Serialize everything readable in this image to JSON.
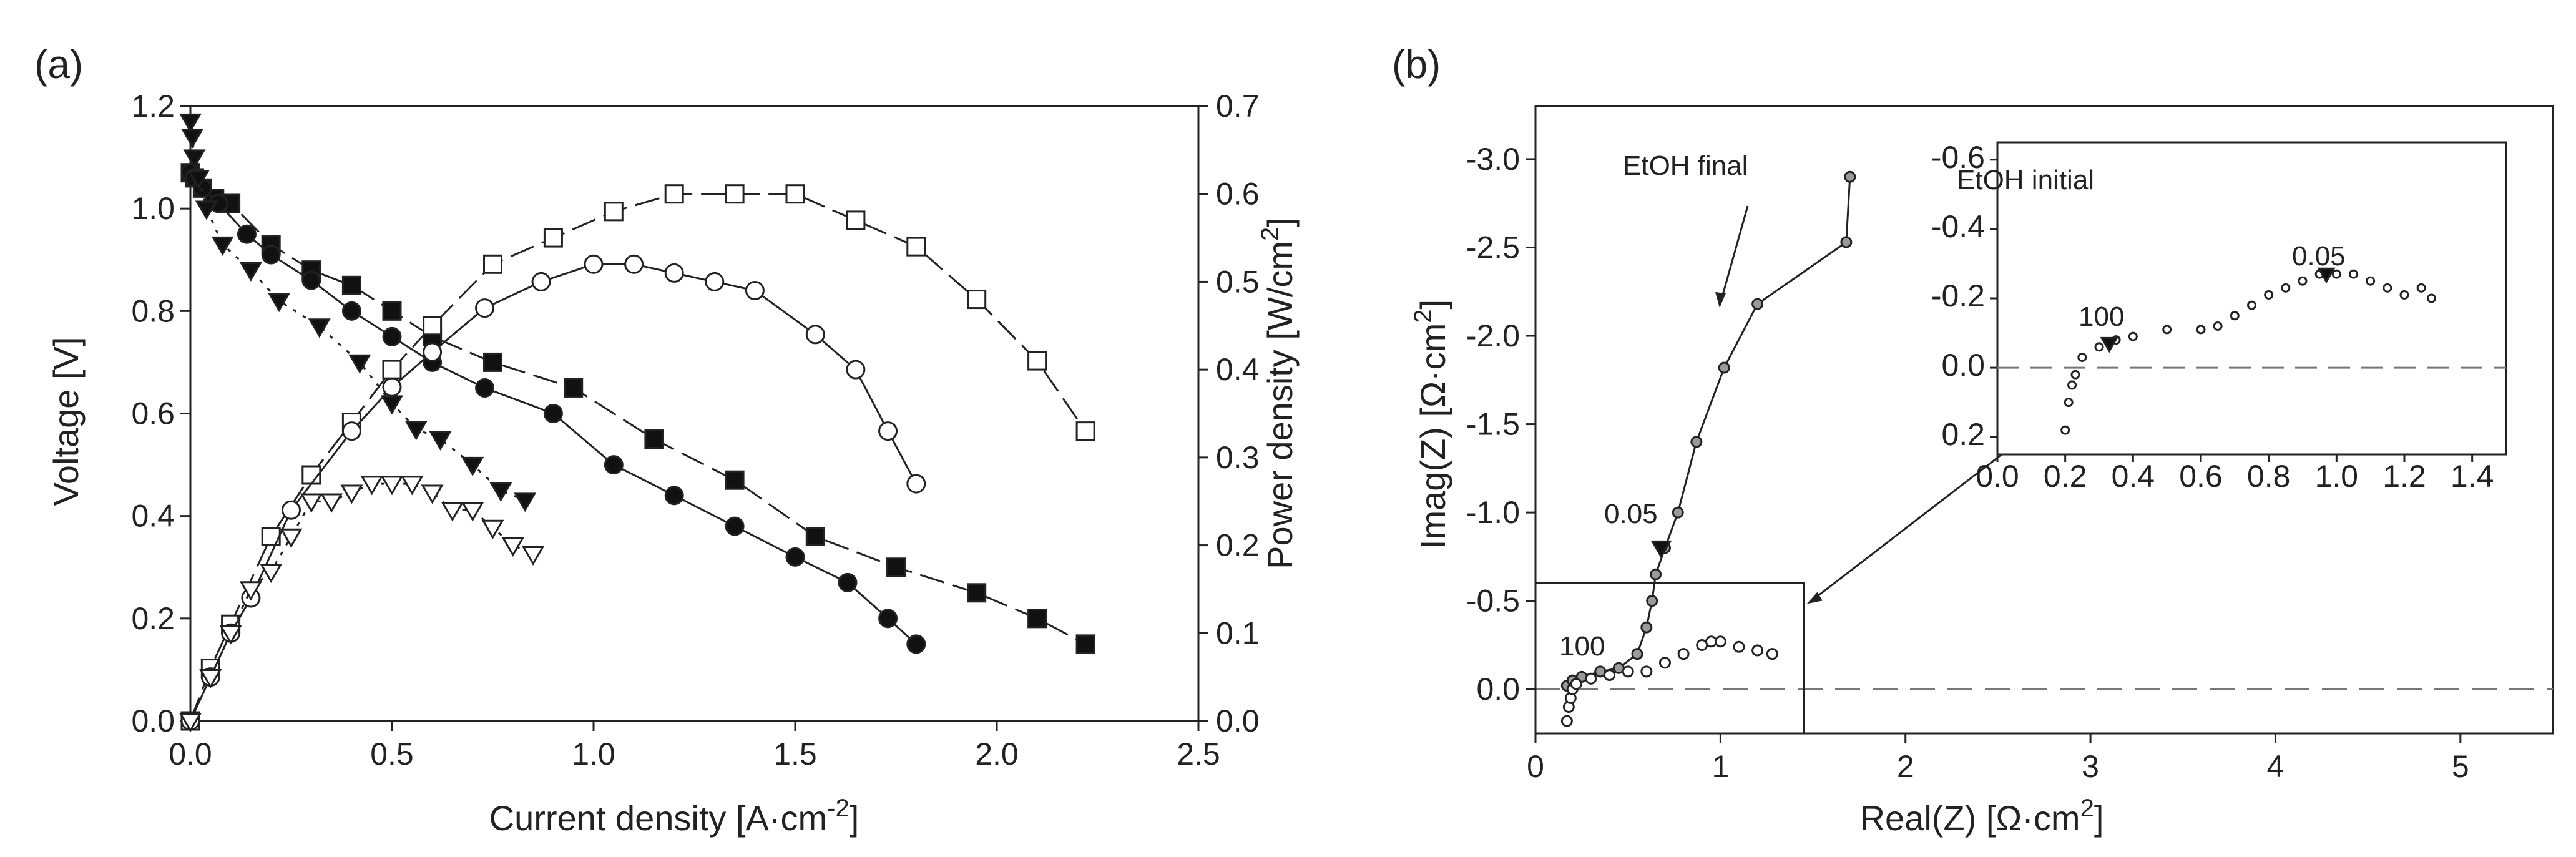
{
  "figure": {
    "colors": {
      "ink": "#222222",
      "marker_fill": "#ffffff",
      "marker_dark": "#111111",
      "impedance_marker": "#9a9a9a",
      "zero_line": "#777777"
    }
  },
  "panel_a": {
    "label": "(a)",
    "xlabel_main": "Current density [A·cm",
    "xlabel_sup": "-2",
    "xlabel_end": "]",
    "ylabel": "Voltage [V]",
    "y2label_main": "Power density [W/cm",
    "y2label_sup": "2",
    "y2label_end": "]"
  },
  "panel_b": {
    "label": "(b)",
    "xlabel_main": "Real(Z) [Ω·cm",
    "xlabel_sup": "2",
    "xlabel_end": "]",
    "ylabel_main": "Imag(Z) [Ω·cm",
    "ylabel_sup": "2",
    "ylabel_end": "]",
    "annotation_final": "EtOH final",
    "annotation_initial": "EtOH initial",
    "freq_low": "0.05",
    "freq_high": "100"
  },
  "chart_data": [
    {
      "type": "line",
      "id": "polarization",
      "xlim": [
        0,
        2.5
      ],
      "ylim": [
        0,
        1.2
      ],
      "y2lim": [
        0,
        0.7
      ],
      "xticks": [
        "0.0",
        "0.5",
        "1.0",
        "1.5",
        "2.0",
        "2.5"
      ],
      "yticks": [
        "0.0",
        "0.2",
        "0.4",
        "0.6",
        "0.8",
        "1.0",
        "1.2"
      ],
      "y2ticks": [
        "0.0",
        "0.1",
        "0.2",
        "0.3",
        "0.4",
        "0.5",
        "0.6",
        "0.7"
      ],
      "series": [
        {
          "name": "voltage-filled-square",
          "axis": "left",
          "marker": "square",
          "filled": true,
          "dash": "long",
          "x": [
            0.0,
            0.01,
            0.03,
            0.06,
            0.1,
            0.2,
            0.3,
            0.4,
            0.5,
            0.6,
            0.75,
            0.95,
            1.15,
            1.35,
            1.55,
            1.75,
            1.95,
            2.1,
            2.22
          ],
          "y": [
            1.07,
            1.06,
            1.04,
            1.02,
            1.01,
            0.93,
            0.88,
            0.85,
            0.8,
            0.75,
            0.7,
            0.65,
            0.55,
            0.47,
            0.36,
            0.3,
            0.25,
            0.2,
            0.15
          ]
        },
        {
          "name": "voltage-filled-circle",
          "axis": "left",
          "marker": "circle",
          "filled": true,
          "dash": "none",
          "x": [
            0.0,
            0.01,
            0.03,
            0.07,
            0.14,
            0.2,
            0.3,
            0.4,
            0.5,
            0.6,
            0.73,
            0.9,
            1.05,
            1.2,
            1.35,
            1.5,
            1.63,
            1.73,
            1.8
          ],
          "y": [
            1.07,
            1.06,
            1.04,
            1.01,
            0.95,
            0.91,
            0.86,
            0.8,
            0.75,
            0.7,
            0.65,
            0.6,
            0.5,
            0.44,
            0.38,
            0.32,
            0.27,
            0.2,
            0.15
          ]
        },
        {
          "name": "voltage-filled-triangle",
          "axis": "left",
          "marker": "triangle-down",
          "filled": true,
          "dash": "dot",
          "x": [
            0.0,
            0.005,
            0.01,
            0.02,
            0.04,
            0.08,
            0.15,
            0.22,
            0.32,
            0.42,
            0.5,
            0.56,
            0.62,
            0.7,
            0.77,
            0.83
          ],
          "y": [
            1.17,
            1.14,
            1.1,
            1.06,
            1.0,
            0.93,
            0.88,
            0.82,
            0.77,
            0.7,
            0.62,
            0.57,
            0.55,
            0.5,
            0.45,
            0.43
          ]
        },
        {
          "name": "power-open-square",
          "axis": "right",
          "marker": "square",
          "filled": false,
          "dash": "long",
          "x": [
            0.0,
            0.05,
            0.1,
            0.2,
            0.3,
            0.4,
            0.5,
            0.6,
            0.75,
            0.9,
            1.05,
            1.2,
            1.35,
            1.5,
            1.65,
            1.8,
            1.95,
            2.1,
            2.22
          ],
          "y": [
            0.0,
            0.06,
            0.11,
            0.21,
            0.28,
            0.34,
            0.4,
            0.45,
            0.52,
            0.55,
            0.58,
            0.6,
            0.6,
            0.6,
            0.57,
            0.54,
            0.48,
            0.41,
            0.33
          ]
        },
        {
          "name": "power-open-circle",
          "axis": "right",
          "marker": "circle",
          "filled": false,
          "dash": "none",
          "x": [
            0.0,
            0.05,
            0.1,
            0.15,
            0.25,
            0.4,
            0.5,
            0.6,
            0.73,
            0.87,
            1.0,
            1.1,
            1.2,
            1.3,
            1.4,
            1.55,
            1.65,
            1.73,
            1.8
          ],
          "y": [
            0.0,
            0.05,
            0.1,
            0.14,
            0.24,
            0.33,
            0.38,
            0.42,
            0.47,
            0.5,
            0.52,
            0.52,
            0.51,
            0.5,
            0.49,
            0.44,
            0.4,
            0.33,
            0.27
          ]
        },
        {
          "name": "power-open-triangle",
          "axis": "right",
          "marker": "triangle-down",
          "filled": false,
          "dash": "dot",
          "x": [
            0.0,
            0.05,
            0.1,
            0.15,
            0.2,
            0.25,
            0.3,
            0.35,
            0.4,
            0.45,
            0.5,
            0.55,
            0.6,
            0.65,
            0.7,
            0.75,
            0.8,
            0.85
          ],
          "y": [
            0.0,
            0.05,
            0.1,
            0.15,
            0.17,
            0.21,
            0.25,
            0.25,
            0.26,
            0.27,
            0.27,
            0.27,
            0.26,
            0.24,
            0.24,
            0.22,
            0.2,
            0.19
          ]
        }
      ]
    },
    {
      "type": "scatter",
      "id": "impedance-main",
      "xlabel": "Real(Z) [Ω·cm2]",
      "ylabel": "Imag(Z) [Ω·cm2]",
      "xlim": [
        0,
        5.5
      ],
      "ylim": [
        0.25,
        -3.3
      ],
      "xticks": [
        "0",
        "1",
        "2",
        "3",
        "4",
        "5"
      ],
      "yticks": [
        "0.0",
        "-0.5",
        "-1.0",
        "-1.5",
        "-2.0",
        "-2.5",
        "-3.0"
      ],
      "yvals": [
        0.0,
        -0.5,
        -1.0,
        -1.5,
        -2.0,
        -2.5,
        -3.0
      ],
      "series": [
        {
          "name": "EtOH final",
          "marker": "circle",
          "line": true,
          "x": [
            0.17,
            0.2,
            0.25,
            0.35,
            0.45,
            0.55,
            0.6,
            0.63,
            0.65,
            0.7,
            0.77,
            0.87,
            1.02,
            1.2,
            1.68,
            1.7
          ],
          "y": [
            -0.02,
            -0.05,
            -0.07,
            -0.1,
            -0.12,
            -0.2,
            -0.35,
            -0.5,
            -0.65,
            -0.8,
            -1.0,
            -1.4,
            -1.82,
            -2.18,
            -2.53,
            -2.9
          ]
        },
        {
          "name": "EtOH initial",
          "marker": "circle",
          "line": false,
          "x": [
            0.17,
            0.18,
            0.19,
            0.2,
            0.22,
            0.3,
            0.4,
            0.5,
            0.6,
            0.7,
            0.8,
            0.9,
            0.95,
            1.0,
            1.1,
            1.2,
            1.28
          ],
          "y": [
            0.18,
            0.1,
            0.05,
            0.0,
            -0.03,
            -0.06,
            -0.08,
            -0.1,
            -0.1,
            -0.15,
            -0.2,
            -0.25,
            -0.27,
            -0.27,
            -0.24,
            -0.22,
            -0.2
          ]
        }
      ],
      "freq_markers": [
        {
          "label": "0.05",
          "x": 0.68,
          "y": -0.8
        }
      ],
      "inset_region": {
        "x": [
          0,
          1.45
        ],
        "y": [
          0.25,
          -0.6
        ]
      },
      "zero_line": 0.0
    },
    {
      "type": "scatter",
      "id": "impedance-inset",
      "xlim": [
        0,
        1.5
      ],
      "ylim": [
        0.25,
        -0.65
      ],
      "xticks": [
        "0.0",
        "0.2",
        "0.4",
        "0.6",
        "0.8",
        "1.0",
        "1.2",
        "1.4"
      ],
      "yticks": [
        "0.2",
        "0.0",
        "-0.2",
        "-0.4",
        "-0.6"
      ],
      "yvals": [
        0.2,
        0.0,
        -0.2,
        -0.4,
        -0.6
      ],
      "series": [
        {
          "name": "EtOH initial",
          "marker": "circle",
          "line": false,
          "x": [
            0.2,
            0.21,
            0.22,
            0.23,
            0.25,
            0.3,
            0.35,
            0.4,
            0.5,
            0.6,
            0.65,
            0.7,
            0.75,
            0.8,
            0.85,
            0.9,
            0.95,
            1.0,
            1.05,
            1.1,
            1.15,
            1.2,
            1.25,
            1.28
          ],
          "y": [
            0.18,
            0.1,
            0.05,
            0.02,
            -0.03,
            -0.06,
            -0.08,
            -0.09,
            -0.11,
            -0.11,
            -0.12,
            -0.15,
            -0.18,
            -0.21,
            -0.23,
            -0.25,
            -0.27,
            -0.27,
            -0.27,
            -0.25,
            -0.23,
            -0.21,
            -0.23,
            -0.2
          ]
        }
      ],
      "freq_markers": [
        {
          "label": "100",
          "x": 0.33,
          "y": -0.07
        },
        {
          "label": "0.05",
          "x": 0.97,
          "y": -0.27
        }
      ],
      "zero_line": 0.0
    }
  ]
}
